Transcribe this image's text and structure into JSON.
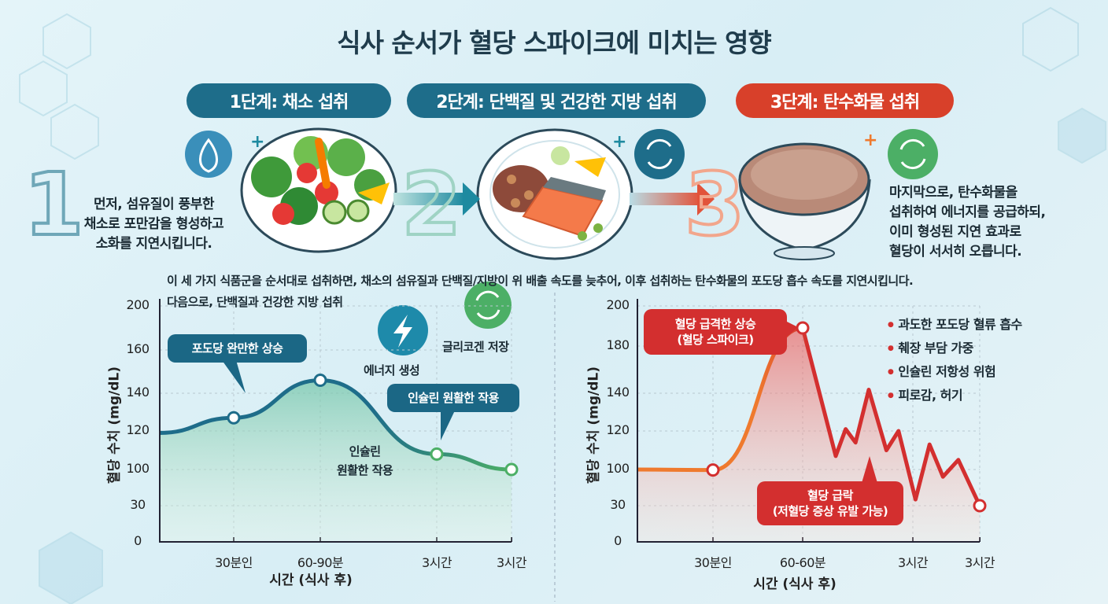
{
  "title": "식사 순서가 혈당 스파이크에 미치는 영향",
  "colors": {
    "teal": "#1e6d8a",
    "red": "#d8402a",
    "green": "#4caf66",
    "orange": "#ef7a2e"
  },
  "steps": [
    {
      "number": "1",
      "label": "1단계: 채소 섭취",
      "desc": [
        "먼저, 섬유질이 풍부한",
        "채소로 포만감을 형성하고",
        "소화를 지연시킵니다."
      ],
      "icon": "flame-leaf-icon"
    },
    {
      "number": "2",
      "label": "2단계: 단백질 및 건강한 지방 섭취",
      "icon": "cycle-icon"
    },
    {
      "number": "3",
      "label": "3단계: 탄수화물 섭취",
      "desc": [
        "마지막으로, 탄수화물을",
        "섭취하여 에너지를 공급하되,",
        "이미 형성된 지연 효과로",
        "혈당이 서서히 오릅니다."
      ],
      "icon": "cycle-icon"
    }
  ],
  "plus": "+",
  "summary": "이 세 가지 식품군을 순서대로 섭취하면, 채소의 섬유질과 단백질/지방이 위 배출 속도를 늦추어, 이후 섭취하는 탄수화물의 포도당 흡수 속도를 지연시킵니다.",
  "left_notes": {
    "subtitle": "다음으로, 단백질과 건강한 지방 섭취",
    "energy": "에너지 생성",
    "glycogen": "글리코겐 저장",
    "insulin_text": [
      "인슐린",
      "원활한 작용"
    ]
  },
  "right_bullets": [
    "과도한 포도당 혈류 흡수",
    "췌장 부담 가중",
    "인슐린 저항성 위험",
    "피로감, 허기"
  ],
  "chart_data": [
    {
      "type": "area",
      "ylabel": "혈당 수치 (mg/dL)",
      "xlabel": "시간 (식사 후)",
      "yticks": [
        0,
        30,
        100,
        120,
        140,
        160,
        200
      ],
      "xticks": [
        "30분인",
        "60-90분",
        "3시간",
        "3시간"
      ],
      "grid": true,
      "color": "#1e6d8a",
      "color_end": "#4caf66",
      "points": [
        {
          "x": 0,
          "y": 119
        },
        {
          "x": 1,
          "y": 127
        },
        {
          "x": 2,
          "y": 146
        },
        {
          "x": 3,
          "y": 108
        },
        {
          "x": 4,
          "y": 100
        }
      ],
      "marked": [
        1,
        2,
        3,
        4
      ],
      "annotations": [
        {
          "text": "포도당 완만한 상승"
        },
        {
          "text": "인슐린 원활한 작용"
        }
      ]
    },
    {
      "type": "line",
      "ylabel": "혈당 수치 (mg/dL)",
      "xlabel": "시간 (식사 후)",
      "yticks": [
        0,
        30,
        100,
        120,
        140,
        180,
        200
      ],
      "xticks": [
        "30분인",
        "60-60분",
        "3시간",
        "3시간"
      ],
      "grid": true,
      "color": "#d32f2f",
      "color_start": "#ef7a2e",
      "points": [
        {
          "x": 0,
          "y": 100
        },
        {
          "x": 1,
          "y": 99
        },
        {
          "x": 2,
          "y": 189
        },
        {
          "x": 2.3,
          "y": 107
        },
        {
          "x": 2.39,
          "y": 121
        },
        {
          "x": 2.48,
          "y": 114
        },
        {
          "x": 2.6,
          "y": 143
        },
        {
          "x": 2.76,
          "y": 110
        },
        {
          "x": 2.87,
          "y": 120
        },
        {
          "x": 3.04,
          "y": 42
        },
        {
          "x": 3.25,
          "y": 113
        },
        {
          "x": 3.45,
          "y": 86
        },
        {
          "x": 3.68,
          "y": 105
        },
        {
          "x": 4,
          "y": 30
        }
      ],
      "marked": [
        1,
        2,
        13
      ],
      "annotations": [
        {
          "text": "혈당 급격한 상승",
          "sub": "(혈당 스파이크)"
        },
        {
          "text": "혈당 급락",
          "sub": "(저혈당 증상 유발 가능)"
        }
      ]
    }
  ]
}
